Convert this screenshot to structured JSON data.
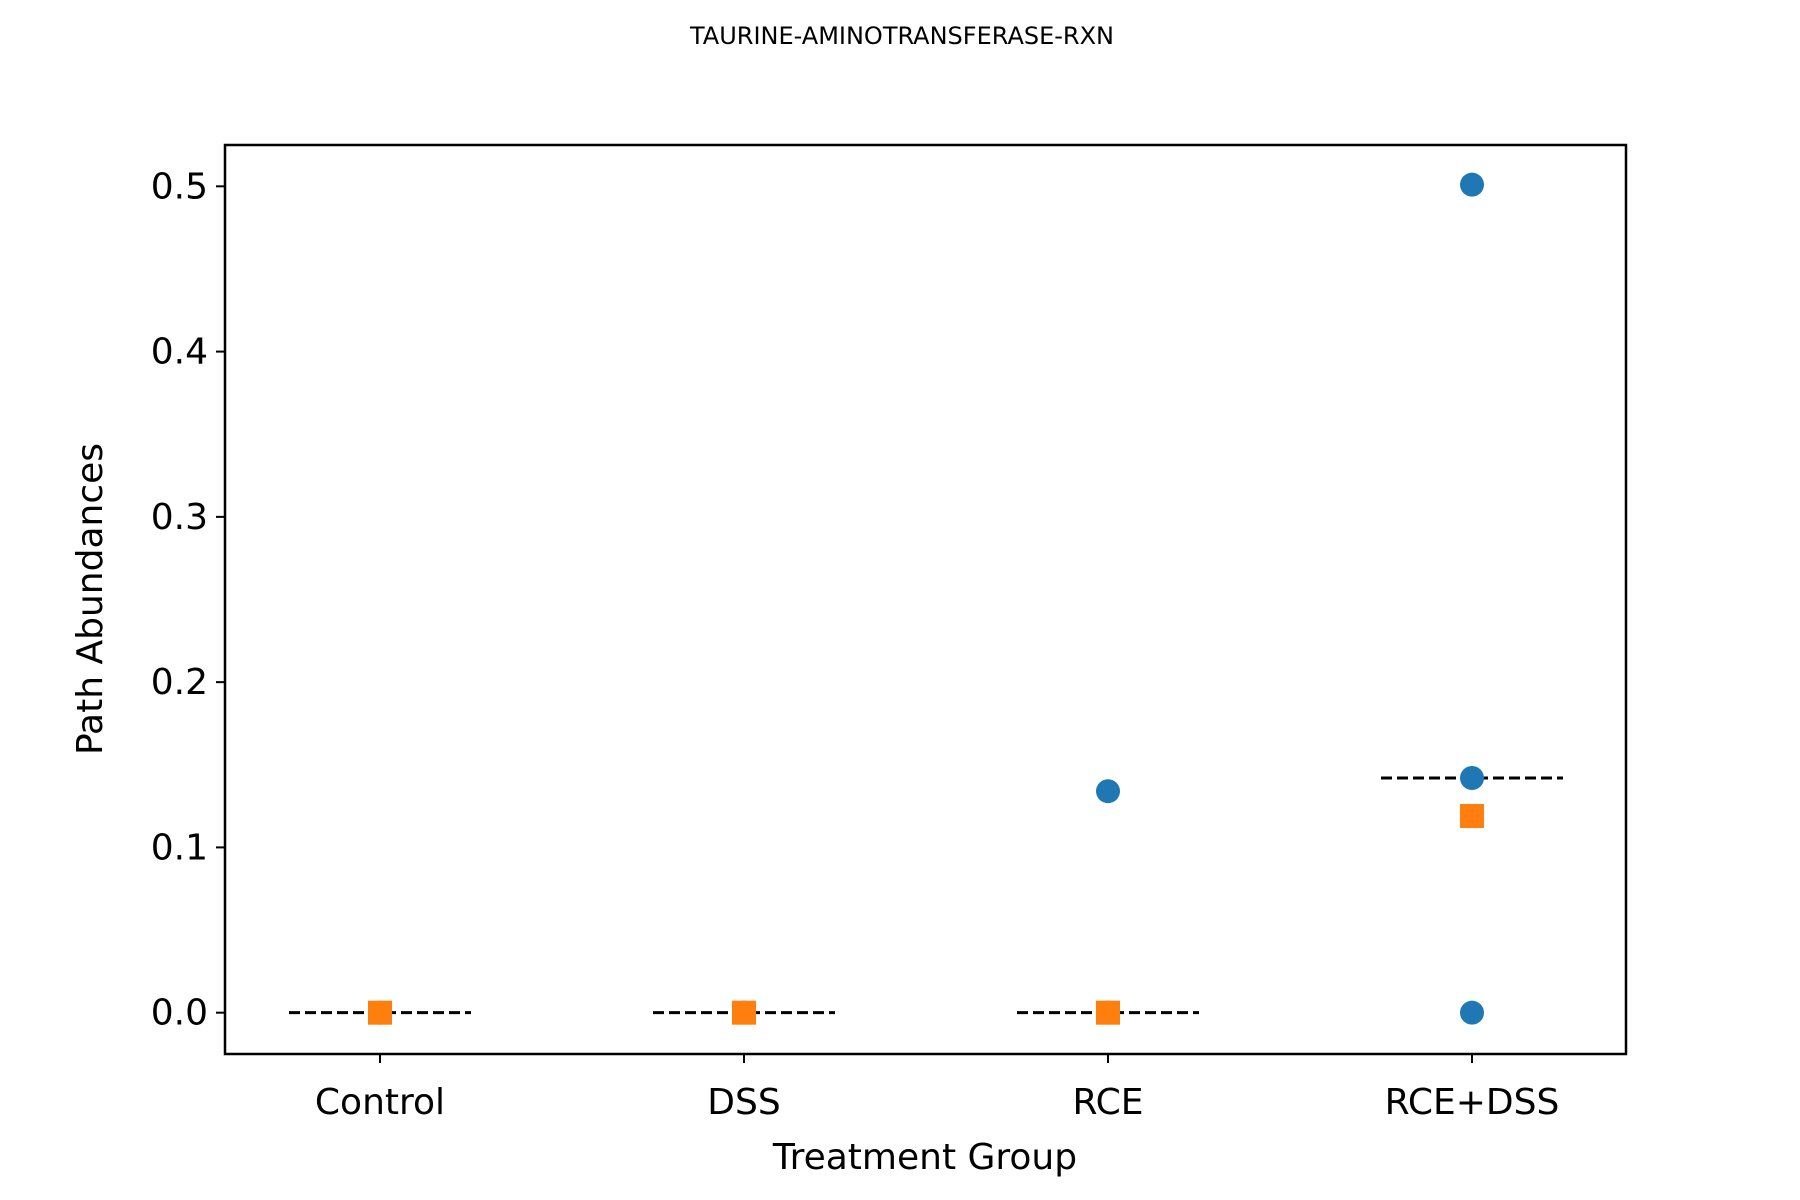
{
  "chart_data": {
    "type": "scatter",
    "title": "TAURINE-AMINOTRANSFERASE-RXN",
    "xlabel": "Treatment Group",
    "ylabel": "Path Abundances",
    "categories": [
      "Control",
      "DSS",
      "RCE",
      "RCE+DSS"
    ],
    "ylim": [
      -0.025,
      0.525
    ],
    "yticks": [
      "0.0",
      "0.1",
      "0.2",
      "0.3",
      "0.4",
      "0.5"
    ],
    "grid": false,
    "series": [
      {
        "marker": "circle",
        "color": "#1f77b4",
        "points": [
          {
            "category": "Control",
            "y": 0.0
          },
          {
            "category": "DSS",
            "y": 0.0
          },
          {
            "category": "RCE",
            "y": 0.134
          },
          {
            "category": "RCE",
            "y": 0.0
          },
          {
            "category": "RCE+DSS",
            "y": 0.501
          },
          {
            "category": "RCE+DSS",
            "y": 0.142
          },
          {
            "category": "RCE+DSS",
            "y": 0.0
          }
        ]
      },
      {
        "marker": "square",
        "color": "#ff7f0e",
        "points": [
          {
            "category": "Control",
            "y": 0.0
          },
          {
            "category": "DSS",
            "y": 0.0
          },
          {
            "category": "RCE",
            "y": 0.0
          },
          {
            "category": "RCE+DSS",
            "y": 0.119
          }
        ]
      }
    ],
    "median_lines": [
      {
        "category": "Control",
        "y": 0.0
      },
      {
        "category": "DSS",
        "y": 0.0
      },
      {
        "category": "RCE",
        "y": 0.0
      },
      {
        "category": "RCE+DSS",
        "y": 0.142
      }
    ]
  }
}
